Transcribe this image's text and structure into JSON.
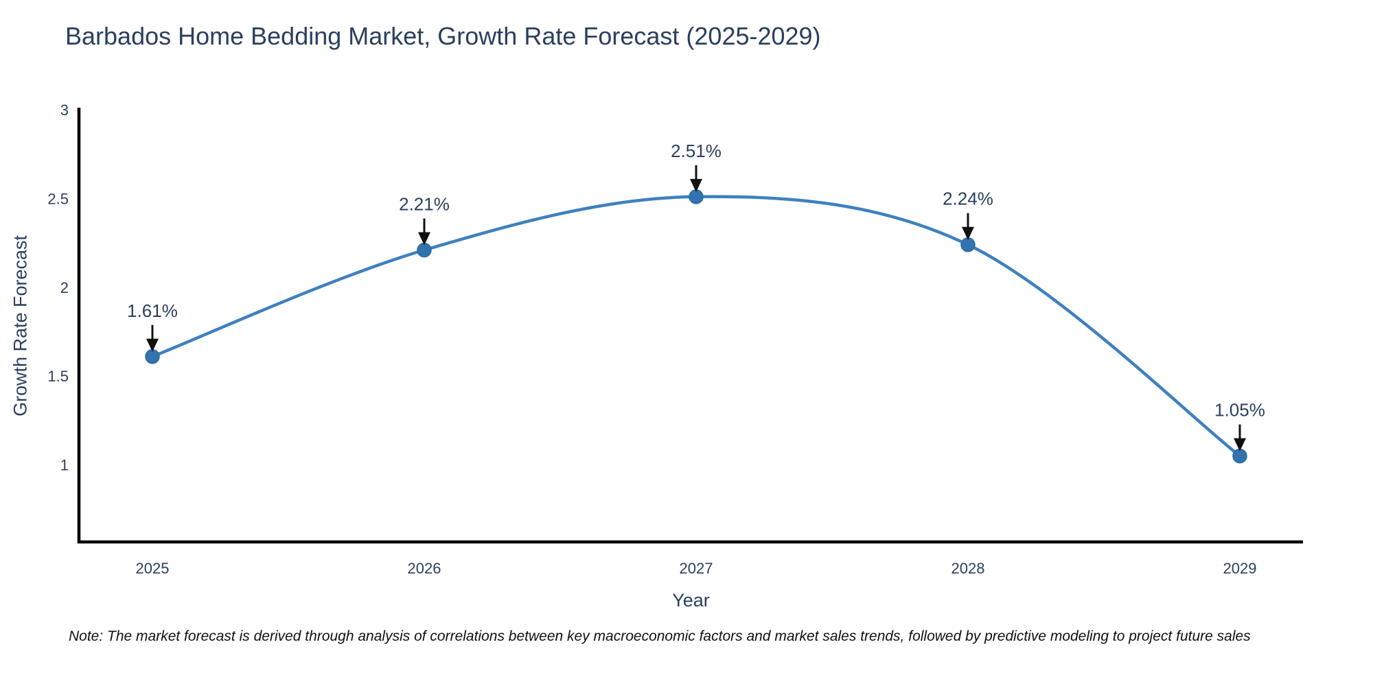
{
  "chart_data": {
    "type": "line",
    "line_shape": "spline",
    "title": "Barbados Home Bedding Market, Growth Rate Forecast (2025-2029)",
    "xlabel": "Year",
    "ylabel": "Growth Rate Forecast",
    "categories": [
      "2025",
      "2026",
      "2027",
      "2028",
      "2029"
    ],
    "series": [
      {
        "name": "Growth Rate Forecast",
        "values": [
          1.61,
          2.21,
          2.51,
          2.24,
          1.05
        ]
      }
    ],
    "point_labels": [
      "1.61%",
      "2.21%",
      "2.51%",
      "2.24%",
      "1.05%"
    ],
    "y_ticks": [
      1,
      1.5,
      2,
      2.5,
      3
    ],
    "ylim": [
      0.566,
      3.0
    ],
    "grid": false,
    "legend_position": "none",
    "colors": {
      "line": "#3f80bf",
      "marker": "#3273ae",
      "marker_edge": "#2a6aa0",
      "annotation_arrow": "#111111",
      "title_text": "#2a3f5f",
      "axis_text": "#2a3f5f",
      "axis_line": "#000000",
      "background": "#ffffff"
    }
  },
  "note": {
    "text": "Note: The market forecast is derived through analysis of correlations between key macroeconomic factors and market sales trends, followed by predictive modeling to project future sales"
  }
}
